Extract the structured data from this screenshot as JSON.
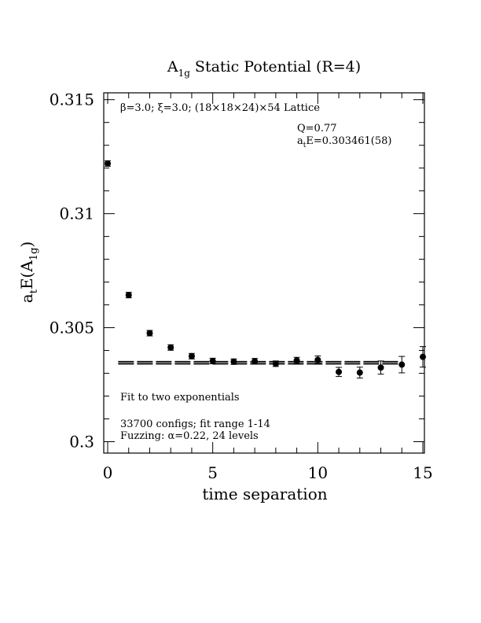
{
  "chart_data": {
    "type": "scatter",
    "title_main": "A",
    "title_sub": "1g",
    "title_rest": " Static Potential (R=4)",
    "xlabel": "time separation",
    "ylabel_main": "a",
    "ylabel_t": "t",
    "ylabel_mid": "E(A",
    "ylabel_sub": "1g",
    "ylabel_end": ")",
    "xlim": [
      0,
      15
    ],
    "ylim": [
      0.2995,
      0.3153
    ],
    "xticks": [
      {
        "value": 0,
        "label": "0"
      },
      {
        "value": 5,
        "label": "5"
      },
      {
        "value": 10,
        "label": "10"
      },
      {
        "value": 15,
        "label": "15"
      }
    ],
    "yticks": [
      {
        "value": 0.3,
        "label": "0.3"
      },
      {
        "value": 0.305,
        "label": "0.305"
      },
      {
        "value": 0.31,
        "label": "0.31"
      },
      {
        "value": 0.315,
        "label": "0.315"
      }
    ],
    "annotations": {
      "lattice": "β=3.0; ξ=3.0; (18×18×24)×54 Lattice",
      "q_value": "Q=0.77",
      "energy_prefix": "a",
      "energy_sub": "t",
      "energy_rest": "E=0.303461(58)",
      "fit_label": "Fit to two exponentials",
      "configs": "33700 configs; fit range 1-14",
      "fuzzing": "Fuzzing: α=0.22, 24 levels"
    },
    "fit": {
      "value": 0.303461,
      "error": 5.8e-05,
      "x_range": [
        0.5,
        13.9
      ]
    },
    "points": [
      {
        "x": 0,
        "y": 0.3122,
        "err": 5e-05
      },
      {
        "x": 1,
        "y": 0.30643,
        "err": 6e-05
      },
      {
        "x": 2,
        "y": 0.30476,
        "err": 7e-05
      },
      {
        "x": 3,
        "y": 0.30413,
        "err": 8e-05
      },
      {
        "x": 4,
        "y": 0.30375,
        "err": 8e-05
      },
      {
        "x": 5,
        "y": 0.30354,
        "err": 9e-05
      },
      {
        "x": 6,
        "y": 0.30351,
        "err": 0.0001
      },
      {
        "x": 7,
        "y": 0.30353,
        "err": 0.00011
      },
      {
        "x": 8,
        "y": 0.30342,
        "err": 0.00012
      },
      {
        "x": 9,
        "y": 0.30356,
        "err": 0.00014
      },
      {
        "x": 10,
        "y": 0.30359,
        "err": 0.00017
      },
      {
        "x": 11,
        "y": 0.30306,
        "err": 0.0002
      },
      {
        "x": 12,
        "y": 0.30303,
        "err": 0.00024
      },
      {
        "x": 13,
        "y": 0.30325,
        "err": 0.00029
      },
      {
        "x": 14,
        "y": 0.30338,
        "err": 0.00036
      },
      {
        "x": 15,
        "y": 0.30372,
        "err": 0.00045
      }
    ]
  }
}
